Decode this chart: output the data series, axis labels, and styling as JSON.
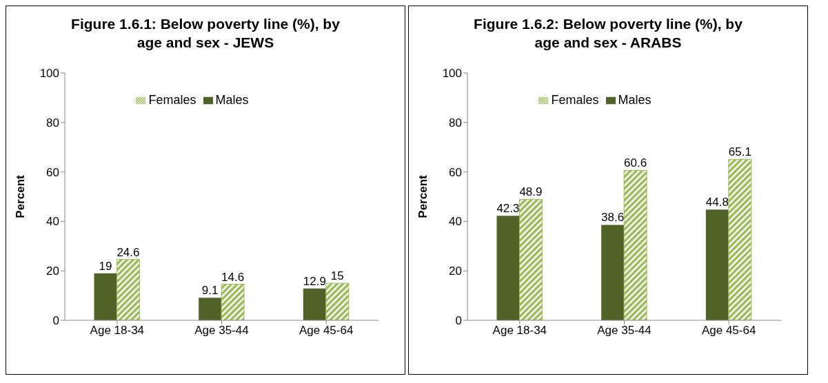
{
  "chart_data": [
    {
      "type": "bar",
      "title": "Figure 1.6.1: Below poverty line (%), by age and sex - JEWS",
      "ylabel": "Percent",
      "categories": [
        "Age 18-34",
        "Age 35-44",
        "Age 45-64"
      ],
      "series": [
        {
          "name": "Males",
          "color": "#4f6228",
          "values": [
            19,
            9.1,
            12.9
          ]
        },
        {
          "name": "Females",
          "color": "#9bbb59",
          "values": [
            24.6,
            14.6,
            15
          ]
        }
      ],
      "ylim": [
        0,
        100
      ],
      "yticks": [
        0,
        20,
        40,
        60,
        80,
        100
      ],
      "grid": false,
      "legend": "top",
      "data_labels": true
    },
    {
      "type": "bar",
      "title": "Figure 1.6.2: Below poverty line (%), by age and sex - ARABS",
      "ylabel": "Percent",
      "categories": [
        "Age 18-34",
        "Age 35-44",
        "Age 45-64"
      ],
      "series": [
        {
          "name": "Males",
          "color": "#4f6228",
          "values": [
            42.3,
            38.6,
            44.8
          ]
        },
        {
          "name": "Females",
          "color": "#9bbb59",
          "values": [
            48.9,
            60.6,
            65.1
          ]
        }
      ],
      "ylim": [
        0,
        100
      ],
      "yticks": [
        0,
        20,
        40,
        60,
        80,
        100
      ],
      "grid": false,
      "legend": "top",
      "data_labels": true
    }
  ]
}
